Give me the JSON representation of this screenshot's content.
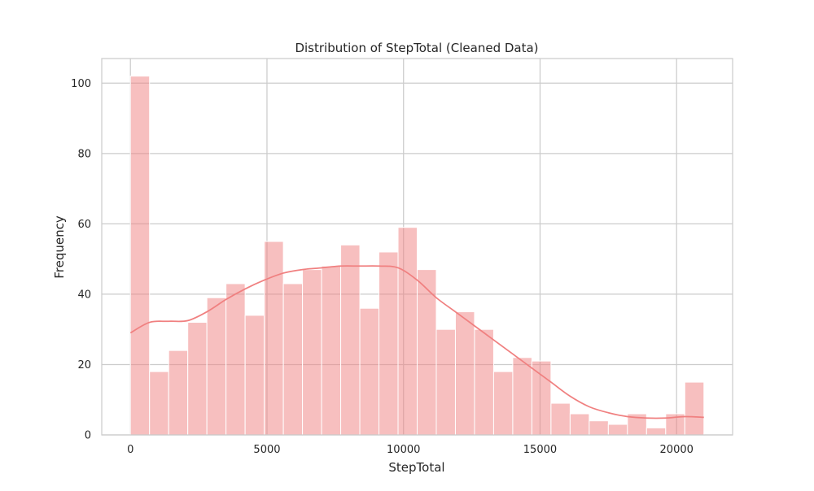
{
  "chart_data": {
    "type": "bar",
    "title": "Distribution of StepTotal (Cleaned Data)",
    "xlabel": "StepTotal",
    "ylabel": "Frequency",
    "xlim": [
      -1050,
      22050
    ],
    "ylim": [
      0,
      107
    ],
    "x_ticks": [
      0,
      5000,
      10000,
      15000,
      20000
    ],
    "y_ticks": [
      0,
      20,
      40,
      60,
      80,
      100
    ],
    "grid": true,
    "bar_color": "#f08080",
    "bar_opacity": 0.5,
    "bin_width": 700,
    "bin_start": 0,
    "counts": [
      102,
      18,
      24,
      32,
      39,
      43,
      34,
      55,
      43,
      47,
      48,
      54,
      36,
      52,
      59,
      47,
      30,
      35,
      30,
      18,
      22,
      21,
      9,
      6,
      4,
      3,
      6,
      2,
      6,
      15
    ],
    "kde": {
      "color": "#f08080",
      "x": [
        0,
        700,
        1400,
        2100,
        2800,
        3500,
        4200,
        4900,
        5600,
        6300,
        7000,
        7700,
        8400,
        9100,
        9800,
        10500,
        11200,
        11900,
        12600,
        13300,
        14000,
        14700,
        15400,
        16100,
        16800,
        17500,
        18200,
        18900,
        19600,
        20300,
        21000
      ],
      "y": [
        29,
        32,
        32.3,
        32.5,
        35,
        38.5,
        41.5,
        44,
        46,
        47,
        47.5,
        48,
        48,
        48,
        47.5,
        44,
        39,
        35,
        31,
        27,
        23,
        19,
        15,
        11,
        8,
        6.3,
        5.2,
        4.8,
        4.8,
        5.2,
        5
      ]
    }
  }
}
